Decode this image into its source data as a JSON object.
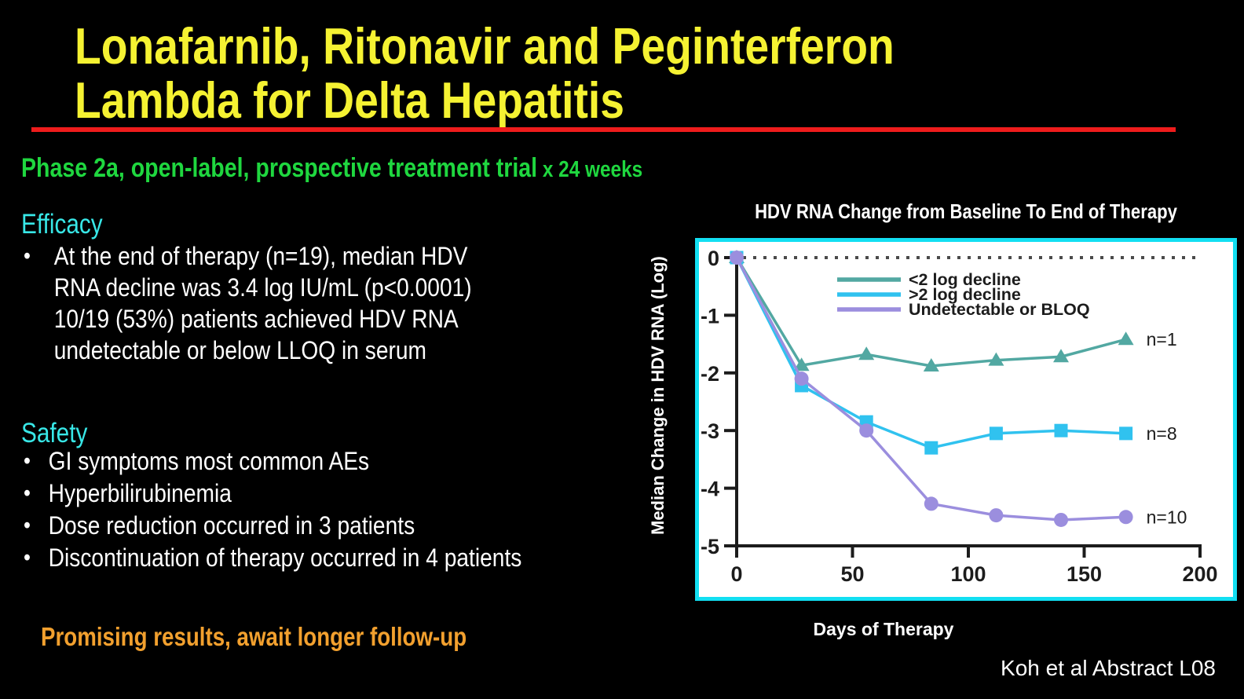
{
  "colors": {
    "background": "#000000",
    "title_yellow": "#f5f232",
    "rule_red": "#ee1c1c",
    "subtitle_green": "#1fd73f",
    "heading_cyan": "#38e7e7",
    "body_white": "#ffffff",
    "conclusion_orange": "#f2a02e",
    "chart_border_cyan": "#12dff2",
    "axis_black": "#1c1c1c"
  },
  "header": {
    "title_line1": "Lonafarnib, Ritonavir and Peginterferon",
    "title_line2": "Lambda for Delta Hepatitis"
  },
  "subtitle": {
    "main": "Phase 2a, open-label, prospective treatment trial",
    "suffix": " x 24 weeks"
  },
  "efficacy": {
    "heading": "Efficacy",
    "bullet_char": "•",
    "lines": [
      "At the end of therapy (n=19), median HDV",
      "RNA decline was 3.4 log IU/mL (p<0.0001)",
      "10/19 (53%) patients achieved HDV RNA",
      "undetectable or below LLOQ in serum"
    ]
  },
  "safety": {
    "heading": "Safety",
    "bullet_char": "•",
    "items": [
      "GI symptoms most common AEs",
      "Hyperbilirubinemia",
      "Dose reduction occurred in 3 patients",
      "Discontinuation of therapy occurred in 4 patients"
    ]
  },
  "conclusion": {
    "text": "Promising results, await longer follow-up"
  },
  "footer": {
    "citation": "Koh et al Abstract L08"
  },
  "chart_data": {
    "type": "line",
    "title": "HDV RNA Change from Baseline To End of Therapy",
    "xlabel": "Days of Therapy",
    "ylabel": "Median Change in HDV RNA (Log)",
    "x": [
      0,
      28,
      56,
      84,
      112,
      140,
      168
    ],
    "xlim": [
      0,
      200
    ],
    "ylim": [
      -5,
      0
    ],
    "xticks": [
      0,
      50,
      100,
      150,
      200
    ],
    "yticks": [
      0,
      -1,
      -2,
      -3,
      -4,
      -5
    ],
    "baseline": {
      "y": 0,
      "style": "dotted",
      "color": "#4a4a4a"
    },
    "grid": false,
    "legend_position": "upper-center",
    "plot_background": "#ffffff",
    "series": [
      {
        "name": "<2 log decline",
        "marker": "triangle",
        "color": "#52a8a2",
        "values": [
          0,
          -1.87,
          -1.68,
          -1.88,
          -1.78,
          -1.72,
          -1.42
        ],
        "end_label": "n=1"
      },
      {
        "name": ">2 log decline",
        "marker": "square",
        "color": "#30c2ef",
        "values": [
          0,
          -2.22,
          -2.85,
          -3.3,
          -3.05,
          -3.0,
          -3.05
        ],
        "end_label": "n=8"
      },
      {
        "name": "Undetectable or BLOQ",
        "marker": "circle",
        "color": "#9b8ede",
        "values": [
          0,
          -2.1,
          -3.0,
          -4.27,
          -4.47,
          -4.55,
          -4.5
        ],
        "end_label": "n=10"
      }
    ]
  }
}
